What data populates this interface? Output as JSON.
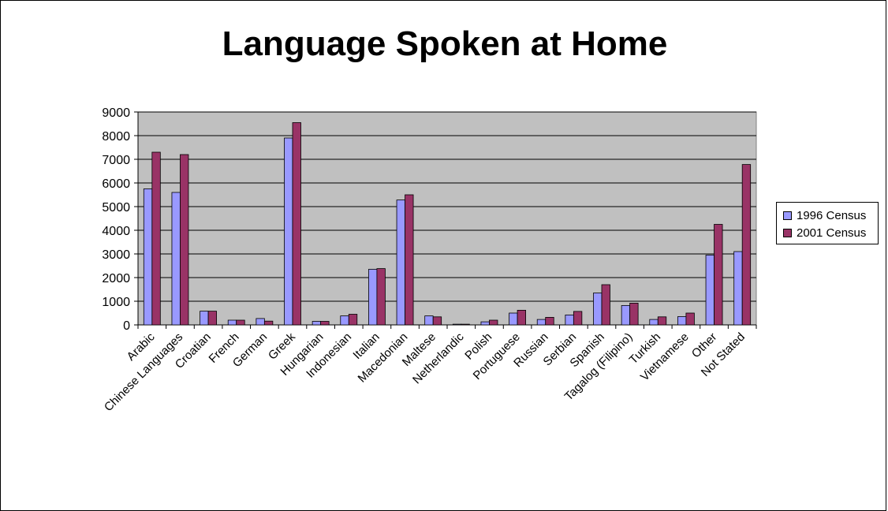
{
  "chart_data": {
    "type": "bar",
    "title": "Language Spoken at Home",
    "xlabel": "",
    "ylabel": "",
    "ylim": [
      0,
      9000
    ],
    "yticks": [
      "0",
      "1000",
      "2000",
      "3000",
      "4000",
      "5000",
      "6000",
      "7000",
      "8000",
      "9000"
    ],
    "grid": true,
    "legend_position": "right",
    "categories": [
      "Arabic",
      "Chinese Languages",
      "Croatian",
      "French",
      "German",
      "Greek",
      "Hungarian",
      "Indonesian",
      "Italian",
      "Macedonian",
      "Maltese",
      "Netherlandic",
      "Polish",
      "Portuguese",
      "Russian",
      "Serbian",
      "Spanish",
      "Tagalog (Filipino)",
      "Turkish",
      "Vietnamese",
      "Other",
      "Not Stated"
    ],
    "series": [
      {
        "name": "1996 Census",
        "color": "#9999ff",
        "values": [
          5750,
          5600,
          580,
          200,
          270,
          7900,
          150,
          380,
          2350,
          5280,
          380,
          30,
          130,
          500,
          230,
          420,
          1350,
          820,
          230,
          350,
          2950,
          3100
        ]
      },
      {
        "name": "2001 Census",
        "color": "#993366",
        "values": [
          7300,
          7200,
          580,
          200,
          160,
          8550,
          150,
          450,
          2380,
          5500,
          340,
          30,
          200,
          620,
          320,
          570,
          1700,
          920,
          340,
          500,
          4250,
          6780
        ]
      }
    ],
    "plot_background": "#c0c0c0"
  }
}
